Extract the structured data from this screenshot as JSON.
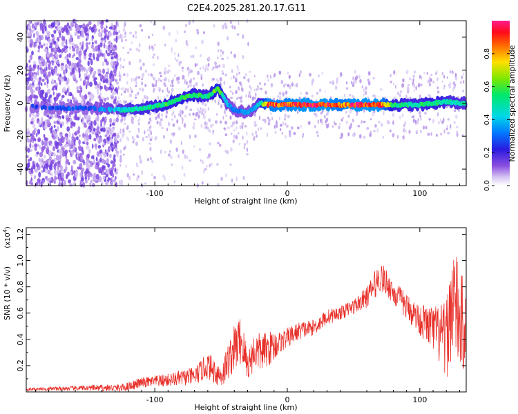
{
  "title": "C2E4.2025.281.20.17.G11",
  "chart_data": [
    {
      "type": "heatmap",
      "xlabel": "Height of straight line (km)",
      "ylabel": "Frequency (Hz)",
      "xlim": [
        -197,
        135
      ],
      "ylim": [
        -50,
        50
      ],
      "xticks": [
        -100,
        0,
        100
      ],
      "xtick_labels": [
        "-100",
        "0",
        "100"
      ],
      "yticks": [
        -40,
        -20,
        0,
        20,
        40
      ],
      "ytick_labels": [
        "-40",
        "-20",
        "0",
        "20",
        "40"
      ],
      "colorbar": {
        "label": "Normalized spectral amplitude",
        "range": [
          0,
          1
        ],
        "ticks": [
          "0.0",
          "0.2",
          "0.4",
          "0.6",
          "0.8"
        ],
        "tick_values": [
          0,
          0.2,
          0.4,
          0.6,
          0.8
        ]
      },
      "ridge": {
        "x": [
          -193,
          -180,
          -165,
          -150,
          -130,
          -120,
          -110,
          -100,
          -90,
          -80,
          -70,
          -60,
          -52,
          -45,
          -40,
          -35,
          -30,
          -25,
          -20,
          -15,
          -10,
          0,
          10,
          20,
          30,
          40,
          50,
          60,
          70,
          80,
          90,
          100,
          110,
          120,
          130,
          135
        ],
        "freq": [
          -2,
          -3,
          -3,
          -3,
          -4,
          -4,
          -3,
          -2,
          0,
          3,
          5,
          4,
          9,
          -1,
          -4,
          -5,
          -6,
          -3,
          0,
          -1,
          -1,
          -1,
          -1,
          -1,
          -1,
          -1,
          -1,
          -1,
          -1,
          -1,
          -1,
          -1,
          0,
          1,
          0,
          0
        ],
        "amplitude": [
          0.3,
          0.3,
          0.3,
          0.3,
          0.45,
          0.5,
          0.55,
          0.55,
          0.6,
          0.6,
          0.6,
          0.55,
          0.7,
          0.4,
          0.35,
          0.35,
          0.35,
          0.4,
          0.5,
          0.95,
          0.95,
          0.95,
          1.0,
          1.0,
          1.0,
          0.9,
          1.0,
          1.0,
          1.0,
          0.6,
          0.55,
          0.55,
          0.6,
          0.55,
          0.5,
          0.5
        ]
      }
    },
    {
      "type": "line",
      "xlabel": "Height of straight line (km)",
      "ylabel": "SNR (10 * v/v)",
      "scale_label": "(x10",
      "scale_exp": "4",
      "scale_close": ")",
      "xlim": [
        -197,
        135
      ],
      "ylim": [
        0,
        1.25
      ],
      "xticks": [
        -100,
        0,
        100
      ],
      "xtick_labels": [
        "-100",
        "0",
        "100"
      ],
      "yticks": [
        0.2,
        0.4,
        0.6,
        0.8,
        1.0,
        1.2
      ],
      "ytick_labels": [
        "0.2",
        "0.4",
        "0.6",
        "0.8",
        "1.0",
        "1.2"
      ],
      "series": [
        {
          "name": "SNR",
          "color": "#e8302a",
          "x": [
            -197,
            -150,
            -125,
            -110,
            -90,
            -70,
            -60,
            -50,
            -40,
            -35,
            -30,
            -25,
            -20,
            -10,
            -5,
            0,
            10,
            20,
            30,
            40,
            50,
            60,
            65,
            70,
            75,
            80,
            90,
            100,
            110,
            120,
            125,
            130,
            135
          ],
          "y": [
            0.02,
            0.03,
            0.03,
            0.07,
            0.09,
            0.12,
            0.2,
            0.12,
            0.33,
            0.4,
            0.2,
            0.31,
            0.3,
            0.35,
            0.38,
            0.41,
            0.47,
            0.49,
            0.57,
            0.6,
            0.65,
            0.72,
            0.8,
            0.88,
            0.83,
            0.76,
            0.65,
            0.55,
            0.48,
            0.38,
            0.75,
            0.52,
            0.5
          ],
          "noise_amplitude": [
            0.01,
            0.02,
            0.03,
            0.04,
            0.05,
            0.07,
            0.1,
            0.1,
            0.18,
            0.2,
            0.12,
            0.15,
            0.15,
            0.12,
            0.08,
            0.08,
            0.07,
            0.06,
            0.06,
            0.05,
            0.06,
            0.08,
            0.1,
            0.12,
            0.1,
            0.1,
            0.1,
            0.12,
            0.18,
            0.3,
            0.45,
            0.4,
            0.35
          ]
        }
      ]
    }
  ]
}
